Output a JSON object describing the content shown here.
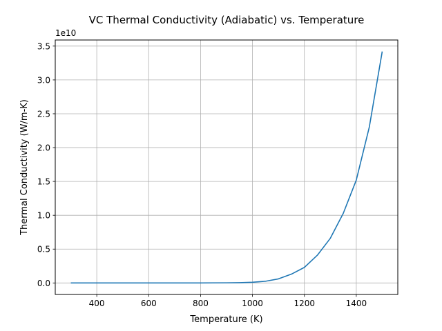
{
  "chart_data": {
    "type": "line",
    "title": "VC Thermal Conductivity (Adiabatic) vs. Temperature",
    "xlabel": "Temperature (K)",
    "ylabel": "Thermal Conductivity (W/m-K)",
    "y_offset_label": "1e10",
    "y_scale_factor": 10000000000,
    "xlim": [
      240,
      1560
    ],
    "ylim": [
      -0.17,
      3.59
    ],
    "x_ticks": [
      400,
      600,
      800,
      1000,
      1200,
      1400
    ],
    "x_tick_labels": [
      "400",
      "600",
      "800",
      "1000",
      "1200",
      "1400"
    ],
    "y_ticks": [
      0,
      0.5,
      1.0,
      1.5,
      2.0,
      2.5,
      3.0,
      3.5
    ],
    "y_tick_labels": [
      "0.0",
      "0.5",
      "1.0",
      "1.5",
      "2.0",
      "2.5",
      "3.0",
      "3.5"
    ],
    "grid": true,
    "series": [
      {
        "color": "#1f77b4",
        "x": [
          300,
          400,
          500,
          600,
          700,
          800,
          900,
          950,
          1000,
          1050,
          1100,
          1150,
          1200,
          1250,
          1300,
          1350,
          1400,
          1450,
          1500
        ],
        "y": [
          0,
          0,
          0,
          0,
          0,
          0,
          0.002,
          0.004,
          0.01,
          0.025,
          0.06,
          0.13,
          0.23,
          0.41,
          0.66,
          1.03,
          1.52,
          2.3,
          3.42
        ]
      }
    ]
  }
}
